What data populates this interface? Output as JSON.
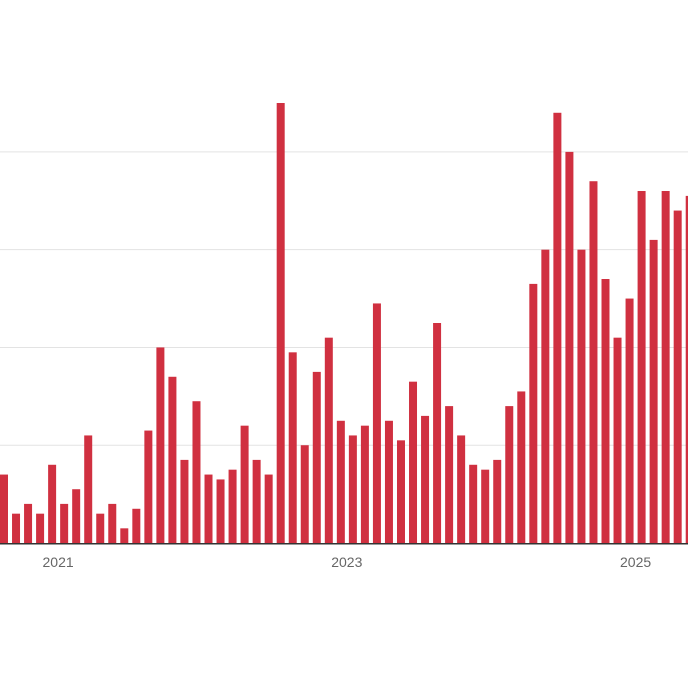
{
  "chart_data": {
    "type": "bar",
    "colors": {
      "bar": "#d03040",
      "grid": "#e3e3e3",
      "axis": "#333333",
      "tick_text": "#666666"
    },
    "x_tick_labels": [
      {
        "label": "2021",
        "at_index": 4
      },
      {
        "label": "2023",
        "at_index": 28
      },
      {
        "label": "2025",
        "at_index": 52
      }
    ],
    "ylim": [
      0,
      90
    ],
    "y_gridlines": [
      20,
      40,
      60,
      80
    ],
    "grid": true,
    "values": [
      14,
      6,
      8,
      6,
      16,
      8,
      11,
      22,
      6,
      8,
      3,
      7,
      23,
      40,
      34,
      17,
      29,
      14,
      13,
      15,
      24,
      17,
      14,
      90,
      39,
      20,
      35,
      42,
      25,
      22,
      24,
      49,
      25,
      21,
      33,
      26,
      45,
      28,
      22,
      16,
      15,
      17,
      28,
      31,
      53,
      60,
      88,
      80,
      60,
      74,
      54,
      42,
      50,
      72,
      62,
      72,
      68,
      71
    ]
  }
}
